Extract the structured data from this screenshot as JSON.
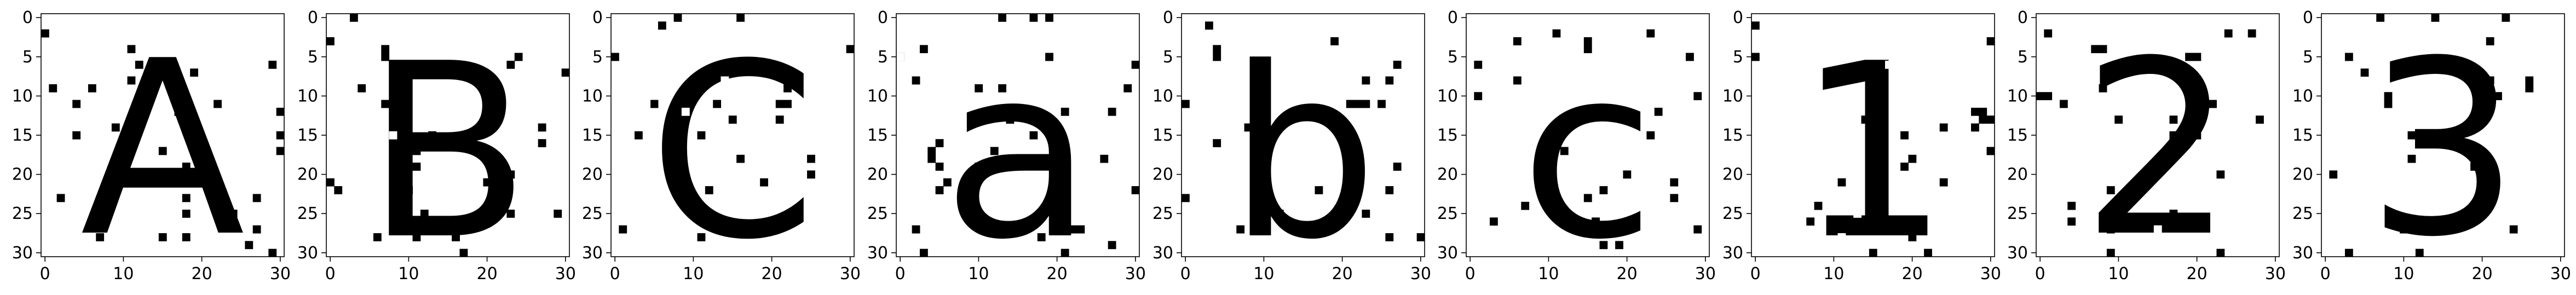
{
  "chart_data": [
    {
      "type": "heatmap",
      "panel": "A",
      "glyph": "A",
      "xlim": [
        0,
        31
      ],
      "ylim": [
        31,
        0
      ],
      "xticks": [
        0,
        10,
        20,
        30
      ],
      "yticks": [
        0,
        5,
        10,
        15,
        20,
        25,
        30
      ],
      "xticklabels": [
        "0",
        "10",
        "20",
        "30"
      ],
      "yticklabels": [
        "0",
        "5",
        "10",
        "15",
        "20",
        "25",
        "30"
      ],
      "grid": false,
      "colormap": "gray_r"
    },
    {
      "type": "heatmap",
      "panel": "B",
      "glyph": "B",
      "xlim": [
        0,
        31
      ],
      "ylim": [
        31,
        0
      ],
      "xticks": [
        0,
        10,
        20,
        30
      ],
      "yticks": [
        0,
        5,
        10,
        15,
        20,
        25,
        30
      ],
      "xticklabels": [
        "0",
        "10",
        "20",
        "30"
      ],
      "yticklabels": [
        "0",
        "5",
        "10",
        "15",
        "20",
        "25",
        "30"
      ],
      "grid": false,
      "colormap": "gray_r"
    },
    {
      "type": "heatmap",
      "panel": "C",
      "glyph": "C",
      "xlim": [
        0,
        31
      ],
      "ylim": [
        31,
        0
      ],
      "xticks": [
        0,
        10,
        20,
        30
      ],
      "yticks": [
        0,
        5,
        10,
        15,
        20,
        25,
        30
      ],
      "xticklabels": [
        "0",
        "10",
        "20",
        "30"
      ],
      "yticklabels": [
        "0",
        "5",
        "10",
        "15",
        "20",
        "25",
        "30"
      ],
      "grid": false,
      "colormap": "gray_r"
    },
    {
      "type": "heatmap",
      "panel": "a",
      "glyph": "a",
      "xlim": [
        0,
        31
      ],
      "ylim": [
        31,
        0
      ],
      "xticks": [
        0,
        10,
        20,
        30
      ],
      "yticks": [
        0,
        5,
        10,
        15,
        20,
        25,
        30
      ],
      "xticklabels": [
        "0",
        "10",
        "20",
        "30"
      ],
      "yticklabels": [
        "0",
        "5",
        "10",
        "15",
        "20",
        "25",
        "30"
      ],
      "grid": false,
      "colormap": "gray_r"
    },
    {
      "type": "heatmap",
      "panel": "b",
      "glyph": "b",
      "xlim": [
        0,
        31
      ],
      "ylim": [
        31,
        0
      ],
      "xticks": [
        0,
        10,
        20,
        30
      ],
      "yticks": [
        0,
        5,
        10,
        15,
        20,
        25,
        30
      ],
      "xticklabels": [
        "0",
        "10",
        "20",
        "30"
      ],
      "yticklabels": [
        "0",
        "5",
        "10",
        "15",
        "20",
        "25",
        "30"
      ],
      "grid": false,
      "colormap": "gray_r"
    },
    {
      "type": "heatmap",
      "panel": "c",
      "glyph": "c",
      "xlim": [
        0,
        31
      ],
      "ylim": [
        31,
        0
      ],
      "xticks": [
        0,
        10,
        20,
        30
      ],
      "yticks": [
        0,
        5,
        10,
        15,
        20,
        25,
        30
      ],
      "xticklabels": [
        "0",
        "10",
        "20",
        "30"
      ],
      "yticklabels": [
        "0",
        "5",
        "10",
        "15",
        "20",
        "25",
        "30"
      ],
      "grid": false,
      "colormap": "gray_r"
    },
    {
      "type": "heatmap",
      "panel": "1",
      "glyph": "1",
      "xlim": [
        0,
        31
      ],
      "ylim": [
        31,
        0
      ],
      "xticks": [
        0,
        10,
        20,
        30
      ],
      "yticks": [
        0,
        5,
        10,
        15,
        20,
        25,
        30
      ],
      "xticklabels": [
        "0",
        "10",
        "20",
        "30"
      ],
      "yticklabels": [
        "0",
        "5",
        "10",
        "15",
        "20",
        "25",
        "30"
      ],
      "grid": false,
      "colormap": "gray_r"
    },
    {
      "type": "heatmap",
      "panel": "2",
      "glyph": "2",
      "xlim": [
        0,
        31
      ],
      "ylim": [
        31,
        0
      ],
      "xticks": [
        0,
        10,
        20,
        30
      ],
      "yticks": [
        0,
        5,
        10,
        15,
        20,
        25,
        30
      ],
      "xticklabels": [
        "0",
        "10",
        "20",
        "30"
      ],
      "yticklabels": [
        "0",
        "5",
        "10",
        "15",
        "20",
        "25",
        "30"
      ],
      "grid": false,
      "colormap": "gray_r"
    },
    {
      "type": "heatmap",
      "panel": "3",
      "glyph": "3",
      "xlim": [
        0,
        31
      ],
      "ylim": [
        31,
        0
      ],
      "xticks": [
        0,
        10,
        20,
        30
      ],
      "yticks": [
        0,
        5,
        10,
        15,
        20,
        25,
        30
      ],
      "xticklabels": [
        "0",
        "10",
        "20",
        "30"
      ],
      "yticklabels": [
        "0",
        "5",
        "10",
        "15",
        "20",
        "25",
        "30"
      ],
      "grid": false,
      "colormap": "gray_r"
    }
  ],
  "style": {
    "background": "#ffffff",
    "ink": "#000000",
    "frame": "#000000"
  }
}
